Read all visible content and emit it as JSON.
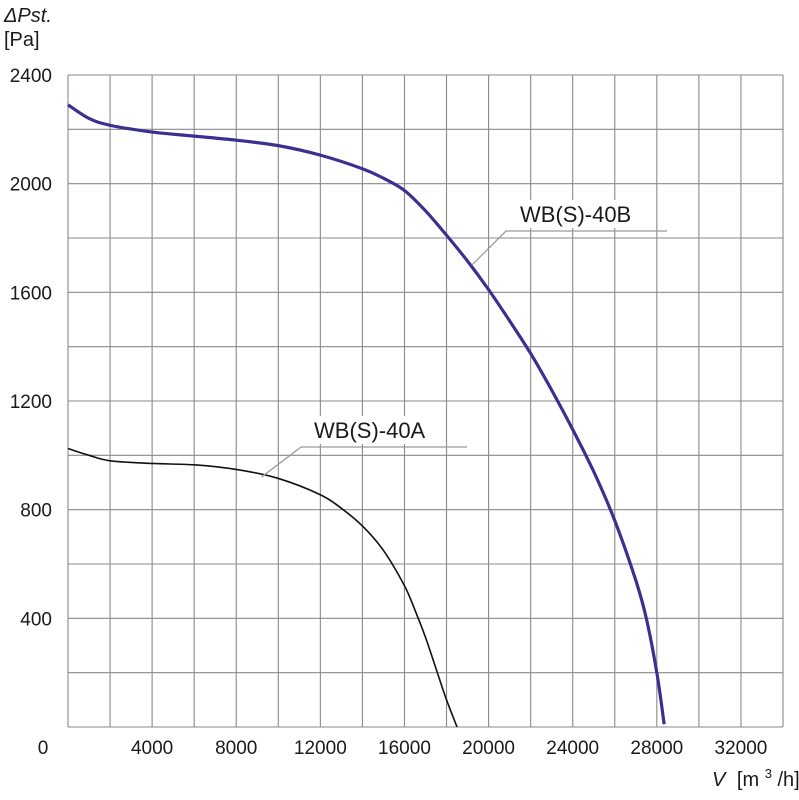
{
  "chart_data": {
    "type": "line",
    "ylabel": {
      "symbol": "ΔPst.",
      "unit": "[Pa]"
    },
    "xlabel": {
      "symbol": "V",
      "unit_prefix": "[m",
      "unit_sup": "3",
      "unit_suffix": "/h]"
    },
    "xlim": [
      0,
      34000
    ],
    "ylim": [
      0,
      2400
    ],
    "x_ticks": [
      {
        "value": 0,
        "label": "0"
      },
      {
        "value": 4000,
        "label": "4000"
      },
      {
        "value": 8000,
        "label": "8000"
      },
      {
        "value": 12000,
        "label": "12000"
      },
      {
        "value": 16000,
        "label": "16000"
      },
      {
        "value": 20000,
        "label": "20000"
      },
      {
        "value": 24000,
        "label": "24000"
      },
      {
        "value": 28000,
        "label": "28000"
      },
      {
        "value": 32000,
        "label": "32000"
      }
    ],
    "y_ticks": [
      {
        "value": 400,
        "label": "400"
      },
      {
        "value": 800,
        "label": "800"
      },
      {
        "value": 1200,
        "label": "1200"
      },
      {
        "value": 1600,
        "label": "1600"
      },
      {
        "value": 2000,
        "label": "2000"
      },
      {
        "value": 2400,
        "label": "2400"
      }
    ],
    "grid": {
      "x_step": 2000,
      "y_step": 200,
      "visible": true
    },
    "series": [
      {
        "name": "WB(S)-40B",
        "color": "#3a3090",
        "points": [
          [
            0,
            2290
          ],
          [
            1000,
            2240
          ],
          [
            2000,
            2215
          ],
          [
            4000,
            2190
          ],
          [
            6000,
            2175
          ],
          [
            8000,
            2160
          ],
          [
            10000,
            2140
          ],
          [
            12000,
            2105
          ],
          [
            14000,
            2055
          ],
          [
            15000,
            2020
          ],
          [
            16000,
            1975
          ],
          [
            17000,
            1900
          ],
          [
            18000,
            1810
          ],
          [
            19000,
            1715
          ],
          [
            20000,
            1610
          ],
          [
            21000,
            1495
          ],
          [
            22000,
            1375
          ],
          [
            23000,
            1240
          ],
          [
            24000,
            1095
          ],
          [
            25000,
            940
          ],
          [
            26000,
            760
          ],
          [
            27000,
            540
          ],
          [
            27500,
            400
          ],
          [
            28000,
            200
          ],
          [
            28350,
            10
          ]
        ],
        "label_at": {
          "x": 19200,
          "y": 1700
        }
      },
      {
        "name": "WB(S)-40A",
        "color": "#111111",
        "points": [
          [
            0,
            1025
          ],
          [
            1000,
            1000
          ],
          [
            2000,
            980
          ],
          [
            4000,
            970
          ],
          [
            6000,
            965
          ],
          [
            8000,
            948
          ],
          [
            10000,
            915
          ],
          [
            12000,
            855
          ],
          [
            13000,
            805
          ],
          [
            14000,
            740
          ],
          [
            15000,
            650
          ],
          [
            16000,
            520
          ],
          [
            16500,
            430
          ],
          [
            17000,
            330
          ],
          [
            17500,
            215
          ],
          [
            18000,
            100
          ],
          [
            18500,
            0
          ]
        ],
        "label_at": {
          "x": 9200,
          "y": 920
        }
      }
    ]
  }
}
